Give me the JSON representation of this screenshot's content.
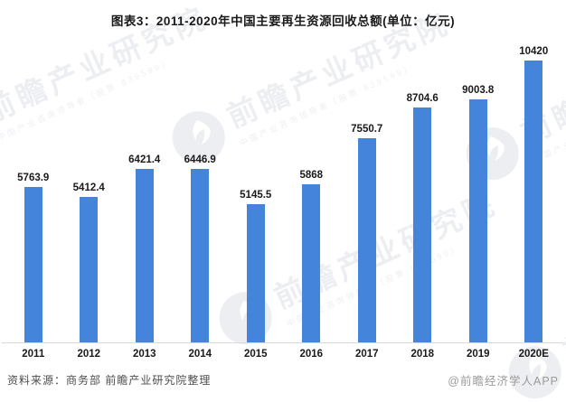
{
  "title": "图表3：2011-2020年中国主要再生资源回收总额(单位：亿元)",
  "chart_data": {
    "type": "bar",
    "title": "图表3：2011-2020年中国主要再生资源回收总额(单位：亿元)",
    "unit": "亿元",
    "categories": [
      "2011",
      "2012",
      "2013",
      "2014",
      "2015",
      "2016",
      "2017",
      "2018",
      "2019",
      "2020E"
    ],
    "values": [
      5763.9,
      5412.4,
      6421.4,
      6446.9,
      5145.5,
      5868,
      7550.7,
      8704.6,
      9003.8,
      10420
    ],
    "value_labels": [
      "5763.9",
      "5412.4",
      "6421.4",
      "6446.9",
      "5145.5",
      "5868",
      "7550.7",
      "8704.6",
      "9003.8",
      "10420"
    ],
    "xlabel": "",
    "ylabel": "",
    "ylim": [
      0,
      11000
    ],
    "grid": false,
    "legend": "none",
    "bar_color": "#4484db",
    "axis_line_color": "#d9d9d9"
  },
  "footer": {
    "source": "资料来源：商务部 前瞻产业研究院整理",
    "credit": "@前瞻经济学人APP"
  },
  "watermark": {
    "brand": "前瞻产业研究院",
    "subtitle": "中国产业咨询领导者（股票·839599）"
  }
}
